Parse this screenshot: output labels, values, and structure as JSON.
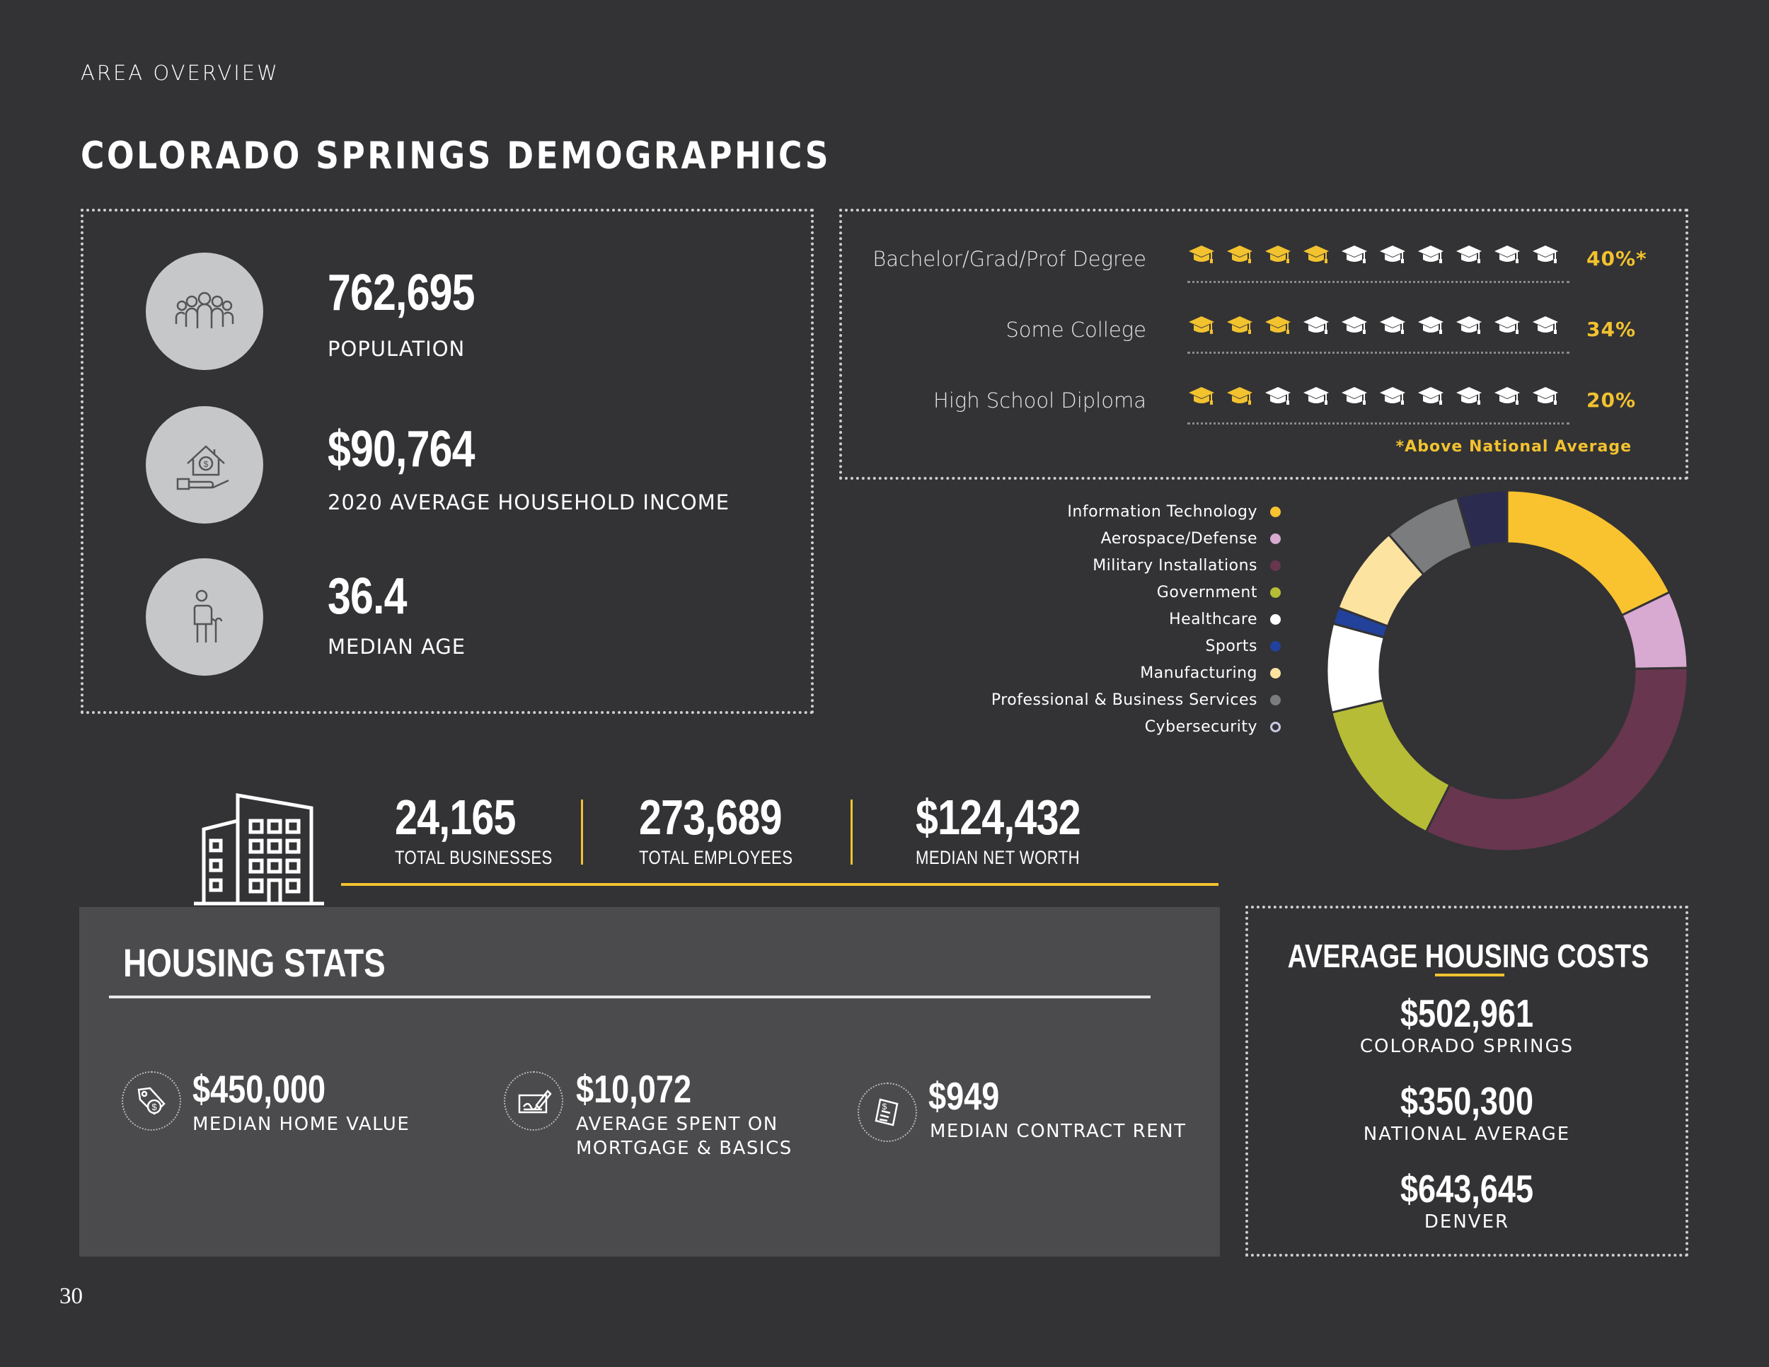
{
  "header": {
    "section": "AREA OVERVIEW",
    "title": "COLORADO SPRINGS DEMOGRAPHICS"
  },
  "key_stats": [
    {
      "value": "762,695",
      "label": "POPULATION",
      "icon": "people-group-icon"
    },
    {
      "value": "$90,764",
      "label": "2020 AVERAGE HOUSEHOLD INCOME",
      "icon": "house-dollar-hand-icon"
    },
    {
      "value": "36.4",
      "label": "MEDIAN AGE",
      "icon": "elderly-person-icon"
    }
  ],
  "education": {
    "rows": [
      {
        "label": "Bachelor/Grad/Prof Degree",
        "filled": 4,
        "total": 10,
        "percent": "40%*"
      },
      {
        "label": "Some College",
        "filled": 3,
        "total": 10,
        "percent": "34%"
      },
      {
        "label": "High School Diploma",
        "filled": 2,
        "total": 10,
        "percent": "20%"
      }
    ],
    "note": "*Above National Average",
    "colors": {
      "filled": "#f2c22f",
      "empty": "#ffffff"
    }
  },
  "industries": {
    "legend": [
      {
        "label": "Information Technology",
        "color": "#f9c22f"
      },
      {
        "label": "Aerospace/Defense",
        "color": "#d8a9d1"
      },
      {
        "label": "Military Installations",
        "color": "#68364f"
      },
      {
        "label": "Government",
        "color": "#b6bc36"
      },
      {
        "label": "Healthcare",
        "color": "#ffffff"
      },
      {
        "label": "Sports",
        "color": "#22419a"
      },
      {
        "label": "Manufacturing",
        "color": "#fde3a0"
      },
      {
        "label": "Professional & Business Services",
        "color": "#7b7c7e"
      },
      {
        "label": "Cybersecurity",
        "color": "#2b2b4f"
      }
    ]
  },
  "chart_data": {
    "type": "pie",
    "title": "",
    "categories": [
      "Information Technology",
      "Aerospace/Defense",
      "Military Installations",
      "Government",
      "Healthcare",
      "Sports",
      "Manufacturing",
      "Professional & Business Services",
      "Cybersecurity"
    ],
    "values": [
      18,
      7,
      33,
      14,
      8,
      1.5,
      8,
      7,
      4.5
    ],
    "colors": [
      "#f9c22f",
      "#d8a9d1",
      "#68364f",
      "#b6bc36",
      "#ffffff",
      "#22419a",
      "#fde3a0",
      "#7b7c7e",
      "#2b2b4f"
    ],
    "style": "donut"
  },
  "business": [
    {
      "value": "24,165",
      "label": "TOTAL BUSINESSES"
    },
    {
      "value": "273,689",
      "label": "TOTAL EMPLOYEES"
    },
    {
      "value": "$124,432",
      "label": "MEDIAN NET WORTH"
    }
  ],
  "housing": {
    "title": "HOUSING STATS",
    "items": [
      {
        "value": "$450,000",
        "label": "MEDIAN HOME VALUE",
        "icon": "price-tag-dollar-icon"
      },
      {
        "value": "$10,072",
        "label": "AVERAGE SPENT ON MORTGAGE & BASICS",
        "icon": "signing-document-icon"
      },
      {
        "value": "$949",
        "label": "MEDIAN CONTRACT RENT",
        "icon": "contract-dollar-icon"
      }
    ]
  },
  "housing_costs": {
    "title": "AVERAGE HOUSING COSTS",
    "items": [
      {
        "value": "$502,961",
        "label": "COLORADO SPRINGS"
      },
      {
        "value": "$350,300",
        "label": "NATIONAL AVERAGE"
      },
      {
        "value": "$643,645",
        "label": "DENVER"
      }
    ]
  },
  "page_number": "30"
}
